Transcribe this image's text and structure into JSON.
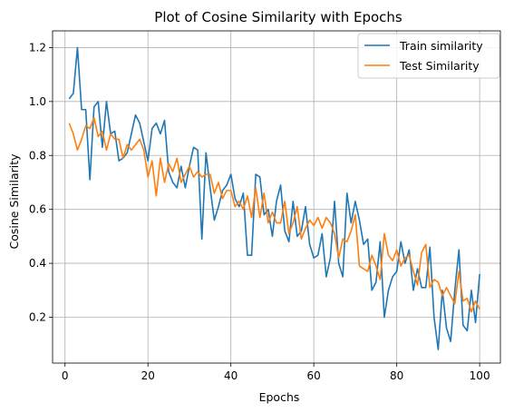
{
  "chart_data": {
    "type": "line",
    "title": "Plot of Cosine Similarity with Epochs",
    "xlabel": "Epochs",
    "ylabel": "Cosine Similarity",
    "xlim": [
      -3,
      105
    ],
    "ylim": [
      0.03,
      1.262
    ],
    "xticks": [
      0,
      20,
      40,
      60,
      80,
      100
    ],
    "yticks": [
      0.2,
      0.4,
      0.6,
      0.8,
      1.0,
      1.2
    ],
    "grid": true,
    "legend_position": "top-right",
    "x": [
      1,
      2,
      3,
      4,
      5,
      6,
      7,
      8,
      9,
      10,
      11,
      12,
      13,
      14,
      15,
      16,
      17,
      18,
      19,
      20,
      21,
      22,
      23,
      24,
      25,
      26,
      27,
      28,
      29,
      30,
      31,
      32,
      33,
      34,
      35,
      36,
      37,
      38,
      39,
      40,
      41,
      42,
      43,
      44,
      45,
      46,
      47,
      48,
      49,
      50,
      51,
      52,
      53,
      54,
      55,
      56,
      57,
      58,
      59,
      60,
      61,
      62,
      63,
      64,
      65,
      66,
      67,
      68,
      69,
      70,
      71,
      72,
      73,
      74,
      75,
      76,
      77,
      78,
      79,
      80,
      81,
      82,
      83,
      84,
      85,
      86,
      87,
      88,
      89,
      90,
      91,
      92,
      93,
      94,
      95,
      96,
      97,
      98,
      99,
      100
    ],
    "series": [
      {
        "name": "Train similarity",
        "color": "#1f77b4",
        "values": [
          1.01,
          1.03,
          1.2,
          0.97,
          0.97,
          0.71,
          0.98,
          1.0,
          0.83,
          1.0,
          0.88,
          0.89,
          0.78,
          0.79,
          0.81,
          0.88,
          0.95,
          0.92,
          0.85,
          0.78,
          0.9,
          0.92,
          0.88,
          0.93,
          0.74,
          0.7,
          0.68,
          0.76,
          0.68,
          0.76,
          0.83,
          0.82,
          0.49,
          0.81,
          0.68,
          0.56,
          0.61,
          0.67,
          0.69,
          0.73,
          0.64,
          0.61,
          0.66,
          0.43,
          0.43,
          0.73,
          0.72,
          0.58,
          0.6,
          0.5,
          0.63,
          0.69,
          0.52,
          0.48,
          0.63,
          0.5,
          0.52,
          0.61,
          0.47,
          0.42,
          0.43,
          0.51,
          0.35,
          0.42,
          0.63,
          0.4,
          0.35,
          0.66,
          0.55,
          0.63,
          0.56,
          0.47,
          0.49,
          0.3,
          0.33,
          0.48,
          0.2,
          0.3,
          0.35,
          0.37,
          0.48,
          0.4,
          0.45,
          0.3,
          0.38,
          0.31,
          0.31,
          0.46,
          0.2,
          0.08,
          0.3,
          0.16,
          0.11,
          0.3,
          0.45,
          0.17,
          0.15,
          0.3,
          0.18,
          0.36
        ]
      },
      {
        "name": "Test Similarity",
        "color": "#ff7f0e",
        "values": [
          0.92,
          0.88,
          0.82,
          0.86,
          0.91,
          0.9,
          0.94,
          0.87,
          0.89,
          0.82,
          0.88,
          0.86,
          0.86,
          0.79,
          0.84,
          0.82,
          0.84,
          0.86,
          0.82,
          0.72,
          0.78,
          0.65,
          0.79,
          0.7,
          0.77,
          0.74,
          0.79,
          0.7,
          0.73,
          0.76,
          0.72,
          0.74,
          0.72,
          0.73,
          0.73,
          0.66,
          0.7,
          0.64,
          0.67,
          0.67,
          0.61,
          0.63,
          0.6,
          0.65,
          0.57,
          0.68,
          0.57,
          0.66,
          0.55,
          0.59,
          0.55,
          0.55,
          0.63,
          0.51,
          0.55,
          0.61,
          0.49,
          0.53,
          0.56,
          0.54,
          0.57,
          0.53,
          0.57,
          0.55,
          0.51,
          0.42,
          0.49,
          0.48,
          0.52,
          0.58,
          0.39,
          0.38,
          0.37,
          0.43,
          0.39,
          0.34,
          0.51,
          0.43,
          0.41,
          0.45,
          0.39,
          0.42,
          0.43,
          0.37,
          0.32,
          0.44,
          0.47,
          0.31,
          0.34,
          0.33,
          0.28,
          0.31,
          0.28,
          0.25,
          0.37,
          0.26,
          0.27,
          0.22,
          0.26,
          0.23
        ]
      }
    ]
  }
}
